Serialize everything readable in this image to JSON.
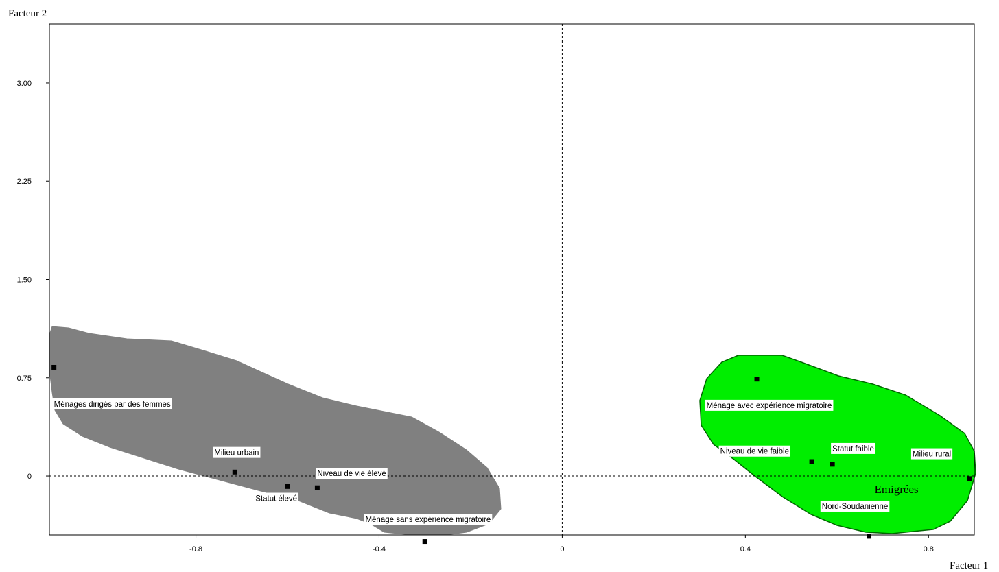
{
  "chart_data": {
    "type": "scatter",
    "title": "",
    "xlabel": "Facteur 1",
    "ylabel": "Facteur 2",
    "xlim": [
      -1.12,
      0.9
    ],
    "ylim": [
      -0.45,
      3.45
    ],
    "x_ticks": [
      {
        "value": -0.8,
        "label": "-0.8"
      },
      {
        "value": -0.4,
        "label": "-0.4"
      },
      {
        "value": 0,
        "label": "0"
      },
      {
        "value": 0.4,
        "label": "0.4"
      },
      {
        "value": 0.8,
        "label": "0.8"
      }
    ],
    "y_ticks": [
      {
        "value": 0,
        "label": "0"
      },
      {
        "value": 0.75,
        "label": "0.75"
      },
      {
        "value": 1.5,
        "label": "1.50"
      },
      {
        "value": 2.25,
        "label": "2.25"
      },
      {
        "value": 3.0,
        "label": "3.00"
      }
    ],
    "colors": {
      "gray_group": "#808080",
      "green_group": "#00ee00",
      "point": "#000000",
      "label_bg": "#ffffff"
    },
    "points": [
      {
        "label": "Ménages dirigés par des femmes",
        "x": -1.11,
        "y": 0.83,
        "label_x": -1.11,
        "label_y": 0.55
      },
      {
        "label": "Milieu urbain",
        "x": -0.715,
        "y": 0.03,
        "label_x": -0.76,
        "label_y": 0.18
      },
      {
        "label": "Statut élevé",
        "x": -0.6,
        "y": -0.08,
        "label_x": -0.67,
        "label_y": -0.17
      },
      {
        "label": "Niveau de vie élevé",
        "x": -0.535,
        "y": -0.09,
        "label_x": -0.535,
        "label_y": 0.02
      },
      {
        "label": "Ménage sans expérience migratoire",
        "x": -0.3,
        "y": -0.5,
        "label_x": -0.43,
        "label_y": -0.33
      },
      {
        "label": "Ménage avec expérience migratoire",
        "x": 0.425,
        "y": 0.74,
        "label_x": 0.315,
        "label_y": 0.54
      },
      {
        "label": "Niveau de vie faible",
        "x": 0.545,
        "y": 0.11,
        "label_x": 0.345,
        "label_y": 0.19
      },
      {
        "label": "Statut faible",
        "x": 0.59,
        "y": 0.09,
        "label_x": 0.59,
        "label_y": 0.21
      },
      {
        "label": "Milieu rural",
        "x": 0.89,
        "y": -0.02,
        "label_x": 0.765,
        "label_y": 0.17
      },
      {
        "label": "Nord-Soudanienne",
        "x": 0.67,
        "y": -0.46,
        "label_x": 0.567,
        "label_y": -0.23
      }
    ],
    "group_labels": [
      {
        "label": "Emigrées",
        "x": 0.73,
        "y": -0.13
      }
    ]
  }
}
